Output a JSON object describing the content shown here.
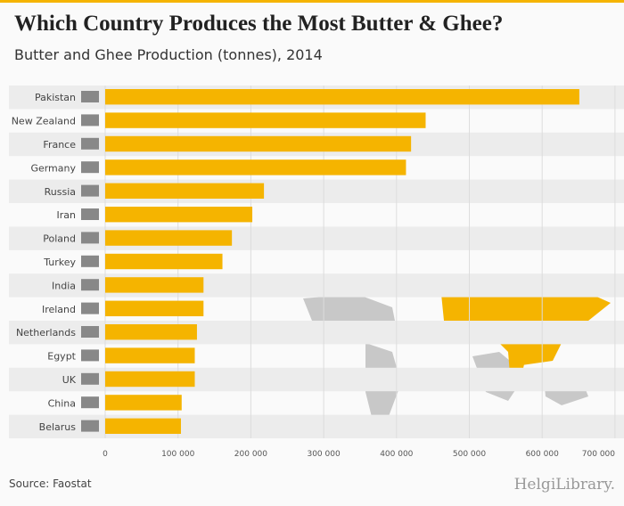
{
  "title": "Which Country Produces the Most Butter & Ghee?",
  "subtitle": "Butter and Ghee Production (tonnes), 2014",
  "source": "Source: Faostat",
  "logo": "HelgiLibrary.",
  "colors": {
    "bar": "#f5b400",
    "stripe": "#ececec",
    "map": "#c8c8c8"
  },
  "chart_data": {
    "type": "bar",
    "orientation": "horizontal",
    "title": "Which Country Produces the Most Butter & Ghee?",
    "subtitle": "Butter and Ghee Production (tonnes), 2014",
    "categories": [
      "Pakistan",
      "New Zealand",
      "France",
      "Germany",
      "Russia",
      "Iran",
      "Poland",
      "Turkey",
      "India",
      "Ireland",
      "Netherlands",
      "Egypt",
      "UK",
      "China",
      "Belarus"
    ],
    "values": [
      651000,
      440000,
      420000,
      413000,
      218000,
      202000,
      174000,
      161000,
      135000,
      135000,
      126000,
      123000,
      123000,
      105000,
      104000
    ],
    "xlim": [
      0,
      700000
    ],
    "xticks": [
      0,
      100000,
      200000,
      300000,
      400000,
      500000,
      600000,
      700000
    ],
    "xtick_labels": [
      "0",
      "100 000",
      "200 000",
      "300 000",
      "400 000",
      "500 000",
      "600 000",
      "700 000"
    ],
    "grid": true
  }
}
